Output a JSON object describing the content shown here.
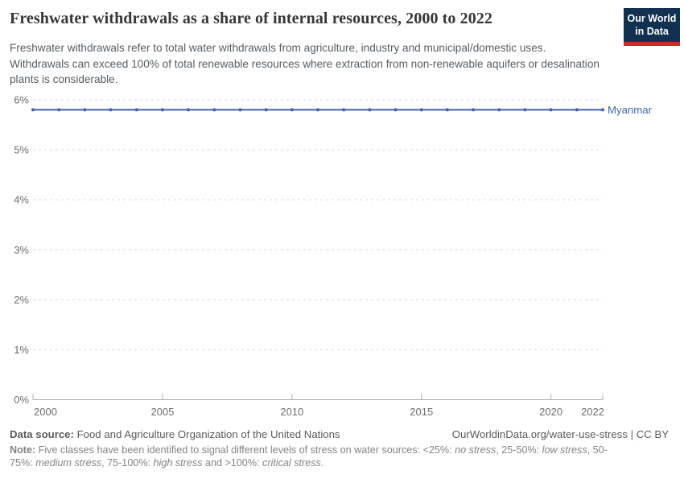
{
  "header": {
    "title": "Freshwater withdrawals as a share of internal resources, 2000 to 2022",
    "subtitle": "Freshwater withdrawals refer to total water withdrawals from agriculture, industry and municipal/domestic uses. Withdrawals can exceed 100% of total renewable resources where extraction from non-renewable aquifers or desalination plants is considerable.",
    "logo": {
      "line1": "Our World",
      "line2": "in Data",
      "bg_color": "#12304f",
      "accent_color": "#cc2a22"
    }
  },
  "chart_data": {
    "type": "line",
    "title": "Freshwater withdrawals as a share of internal resources, 2000 to 2022",
    "xlabel": "",
    "ylabel": "",
    "xlim": [
      2000,
      2022
    ],
    "ylim": [
      0,
      6
    ],
    "x_ticks": [
      2000,
      2005,
      2010,
      2015,
      2020,
      2022
    ],
    "y_ticks": [
      0,
      1,
      2,
      3,
      4,
      5,
      6
    ],
    "y_tick_suffix": "%",
    "grid": "horizontal-dashed",
    "legend_position": "line-end-label",
    "series": [
      {
        "name": "Myanmar",
        "color": "#3f63a6",
        "label_color": "#3d67a9",
        "x": [
          2000,
          2001,
          2002,
          2003,
          2004,
          2005,
          2006,
          2007,
          2008,
          2009,
          2010,
          2011,
          2012,
          2013,
          2014,
          2015,
          2016,
          2017,
          2018,
          2019,
          2020,
          2021,
          2022
        ],
        "values": [
          5.8,
          5.8,
          5.8,
          5.8,
          5.8,
          5.8,
          5.8,
          5.8,
          5.8,
          5.8,
          5.8,
          5.8,
          5.8,
          5.8,
          5.8,
          5.8,
          5.8,
          5.8,
          5.8,
          5.8,
          5.8,
          5.8,
          5.8
        ]
      }
    ],
    "axis_colors": {
      "gridline": "#d9d9d9",
      "axis_line": "#b0b0b0",
      "tick_label": "#6e6e6e"
    }
  },
  "footer": {
    "datasource_label": "Data source:",
    "datasource_value": "Food and Agriculture Organization of the United Nations",
    "link": "OurWorldinData.org/water-use-stress | CC BY",
    "note_label": "Note:",
    "note_segments": [
      {
        "text": "Five classes have been identified to signal different levels of stress on water sources: <25%: ",
        "italic": false
      },
      {
        "text": "no stress",
        "italic": true
      },
      {
        "text": ", 25-50%: ",
        "italic": false
      },
      {
        "text": "low stress",
        "italic": true
      },
      {
        "text": ", 50-75%: ",
        "italic": false
      },
      {
        "text": "medium stress",
        "italic": true
      },
      {
        "text": ", 75-100%: ",
        "italic": false
      },
      {
        "text": "high stress",
        "italic": true
      },
      {
        "text": " and >100%: ",
        "italic": false
      },
      {
        "text": "critical stress",
        "italic": true
      },
      {
        "text": ".",
        "italic": false
      }
    ]
  }
}
